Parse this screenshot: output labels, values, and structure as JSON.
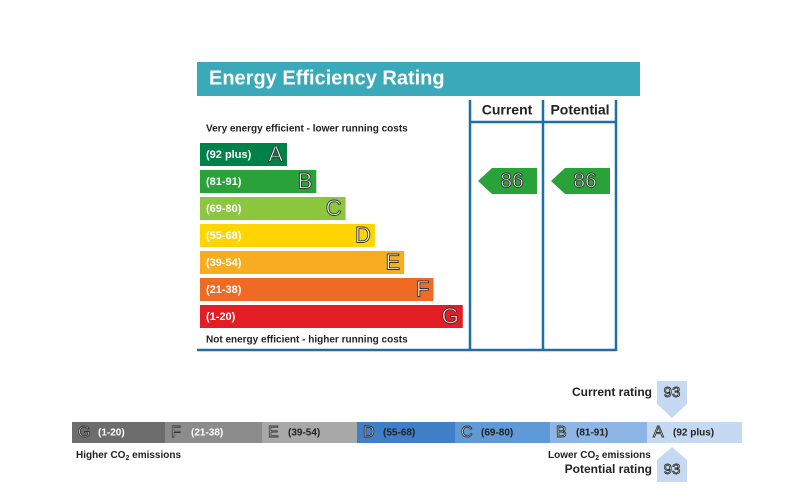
{
  "energy": {
    "title": "Energy Efficiency Rating",
    "columns": [
      "Current",
      "Potential"
    ],
    "top_note": "Very energy efficient - lower running costs",
    "bottom_note": "Not energy efficient - higher running costs",
    "bands": [
      {
        "range": "(92 plus)",
        "letter": "A",
        "color": "#00814a"
      },
      {
        "range": "(81-91)",
        "letter": "B",
        "color": "#2aa23a"
      },
      {
        "range": "(69-80)",
        "letter": "C",
        "color": "#8cc63f"
      },
      {
        "range": "(55-68)",
        "letter": "D",
        "color": "#ffd500"
      },
      {
        "range": "(39-54)",
        "letter": "E",
        "color": "#f7ad1f"
      },
      {
        "range": "(21-38)",
        "letter": "F",
        "color": "#ef6b23"
      },
      {
        "range": "(1-20)",
        "letter": "G",
        "color": "#e31d23"
      }
    ],
    "current": "86",
    "potential": "86",
    "arrow_color": "#2aa23a"
  },
  "co2": {
    "bands": [
      {
        "letter": "G",
        "range": "(1-20)",
        "color": "#6d6d6d",
        "text_color": "#fff"
      },
      {
        "letter": "F",
        "range": "(21-38)",
        "color": "#8c8c8c",
        "text_color": "#fff"
      },
      {
        "letter": "E",
        "range": "(39-54)",
        "color": "#a8a8a8",
        "text_color": "#222"
      },
      {
        "letter": "D",
        "range": "(55-68)",
        "color": "#3f7fc7",
        "text_color": "#222"
      },
      {
        "letter": "C",
        "range": "(69-80)",
        "color": "#5f99d7",
        "text_color": "#222"
      },
      {
        "letter": "B",
        "range": "(81-91)",
        "color": "#8db5e5",
        "text_color": "#222"
      },
      {
        "letter": "A",
        "range": "(92 plus)",
        "color": "#c5daf2",
        "text_color": "#222"
      }
    ],
    "current_label": "Current rating",
    "current": "93",
    "potential_label": "Potential rating",
    "potential": "93",
    "higher": {
      "before": "Higher CO",
      "sub": "2",
      "after": " emissions"
    },
    "lower": {
      "before": "Lower CO",
      "sub": "2",
      "after": " emissions"
    }
  }
}
